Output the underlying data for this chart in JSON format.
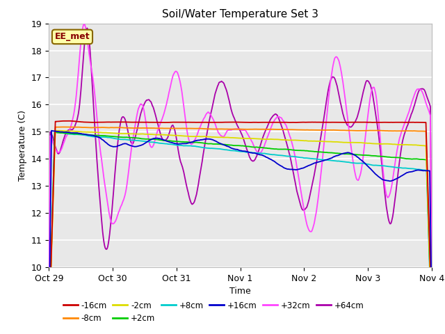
{
  "title": "Soil/Water Temperature Set 3",
  "xlabel": "Time",
  "ylabel": "Temperature (C)",
  "ylim": [
    10.0,
    19.0
  ],
  "yticks": [
    10.0,
    11.0,
    12.0,
    13.0,
    14.0,
    15.0,
    16.0,
    17.0,
    18.0,
    19.0
  ],
  "plot_bg_color": "#e8e8e8",
  "series": {
    "-16cm": {
      "color": "#cc0000"
    },
    "-8cm": {
      "color": "#ff8800"
    },
    "-2cm": {
      "color": "#dddd00"
    },
    "+2cm": {
      "color": "#00cc00"
    },
    "+8cm": {
      "color": "#00cccc"
    },
    "+16cm": {
      "color": "#0000cc"
    },
    "+32cm": {
      "color": "#ff44ff"
    },
    "+64cm": {
      "color": "#aa00aa"
    }
  },
  "xtick_labels": [
    "Oct 29",
    "Oct 30",
    "Oct 31",
    "Nov 1",
    "Nov 2",
    "Nov 3",
    "Nov 4"
  ],
  "annotation_text": "EE_met",
  "annotation_bg": "#ffffaa",
  "annotation_border": "#886600",
  "legend_row1": [
    "-16cm",
    "-8cm",
    "-2cm",
    "+2cm",
    "+8cm",
    "+16cm"
  ],
  "legend_row2": [
    "+32cm",
    "+64cm"
  ]
}
